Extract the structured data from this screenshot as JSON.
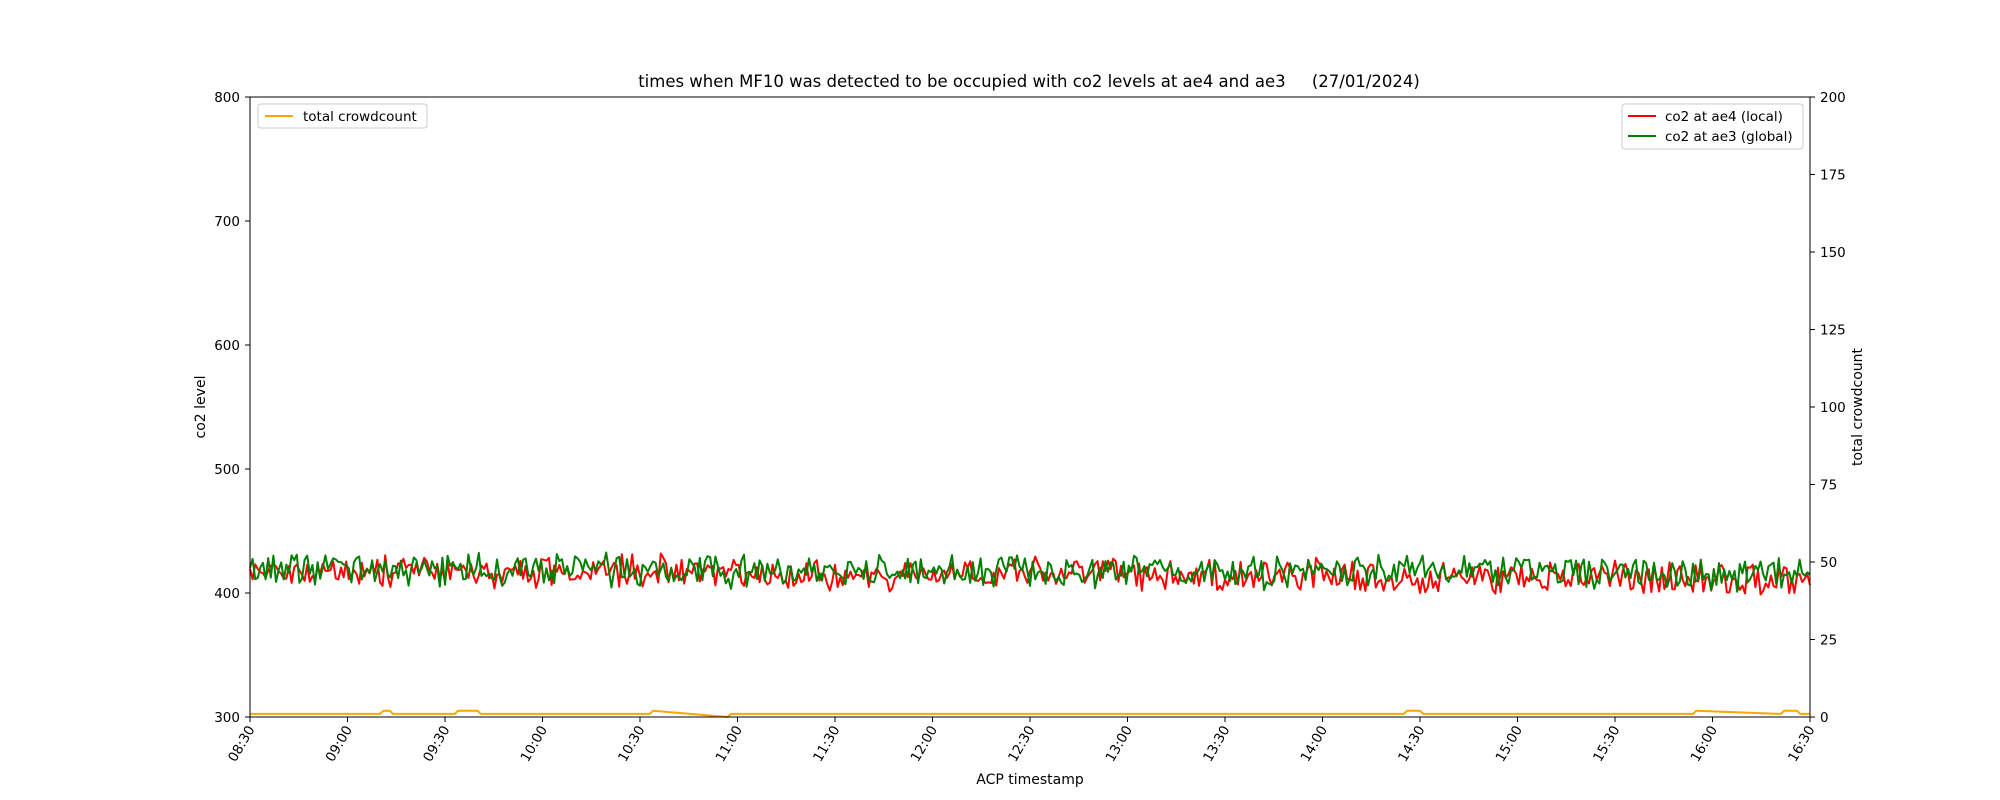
{
  "chart_data": {
    "type": "line",
    "title": "times when MF10 was detected to be occupied with co2 levels at ae4 and ae3     (27/01/2024)",
    "xlabel": "ACP timestamp",
    "ylabel_left": "co2 level",
    "ylabel_right": "total crowdcount",
    "x_range": [
      "08:30",
      "16:30"
    ],
    "x_ticks": [
      "08:30",
      "09:00",
      "09:30",
      "10:00",
      "10:30",
      "11:00",
      "11:30",
      "12:00",
      "12:30",
      "13:00",
      "13:30",
      "14:00",
      "14:30",
      "15:00",
      "15:30",
      "16:00",
      "16:30"
    ],
    "ylim_left": [
      300,
      800
    ],
    "yticks_left": [
      300,
      400,
      500,
      600,
      700,
      800
    ],
    "ylim_right": [
      0,
      200
    ],
    "yticks_right": [
      0,
      25,
      50,
      75,
      100,
      125,
      150,
      175,
      200
    ],
    "grid": false,
    "legend_left": {
      "placement": "top-left",
      "entries": [
        "total crowdcount"
      ]
    },
    "legend_right": {
      "placement": "top-right",
      "entries": [
        "co2 at ae4 (local)",
        "co2 at ae3 (global)"
      ]
    },
    "colors": {
      "ae4": "#ff0000",
      "ae3": "#008000",
      "crowd": "#ffa500"
    },
    "series": [
      {
        "name": "co2 at ae4 (local)",
        "axis": "left",
        "color": "#ff0000",
        "x": [
          "08:30",
          "09:00",
          "09:30",
          "10:00",
          "10:30",
          "11:00",
          "11:30",
          "12:00",
          "12:30",
          "13:00",
          "13:30",
          "14:00",
          "14:30",
          "15:00",
          "15:30",
          "16:00",
          "16:30"
        ],
        "values": [
          418,
          416,
          417,
          415,
          419,
          416,
          414,
          415,
          418,
          416,
          413,
          414,
          412,
          414,
          413,
          412,
          411
        ]
      },
      {
        "name": "co2 at ae3 (global)",
        "axis": "left",
        "color": "#008000",
        "x": [
          "08:30",
          "09:00",
          "09:30",
          "10:00",
          "10:30",
          "11:00",
          "11:30",
          "12:00",
          "12:30",
          "13:00",
          "13:30",
          "14:00",
          "14:30",
          "15:00",
          "15:30",
          "16:00",
          "16:30"
        ],
        "values": [
          420,
          419,
          418,
          420,
          418,
          417,
          418,
          417,
          419,
          417,
          416,
          417,
          418,
          418,
          416,
          415,
          415
        ]
      },
      {
        "name": "total crowdcount",
        "axis": "right",
        "color": "#ffa500",
        "x": [
          "08:30",
          "09:10",
          "09:11",
          "09:13",
          "09:14",
          "09:33",
          "09:34",
          "09:40",
          "09:41",
          "10:33",
          "10:34",
          "10:57",
          "10:58",
          "14:25",
          "14:26",
          "14:30",
          "14:31",
          "15:54",
          "15:55",
          "16:21",
          "16:22",
          "16:26",
          "16:27",
          "16:30"
        ],
        "values": [
          1,
          1,
          2,
          2,
          1,
          1,
          2,
          2,
          1,
          1,
          2,
          0,
          1,
          1,
          2,
          2,
          1,
          1,
          2,
          1,
          2,
          2,
          1,
          1
        ]
      }
    ]
  }
}
